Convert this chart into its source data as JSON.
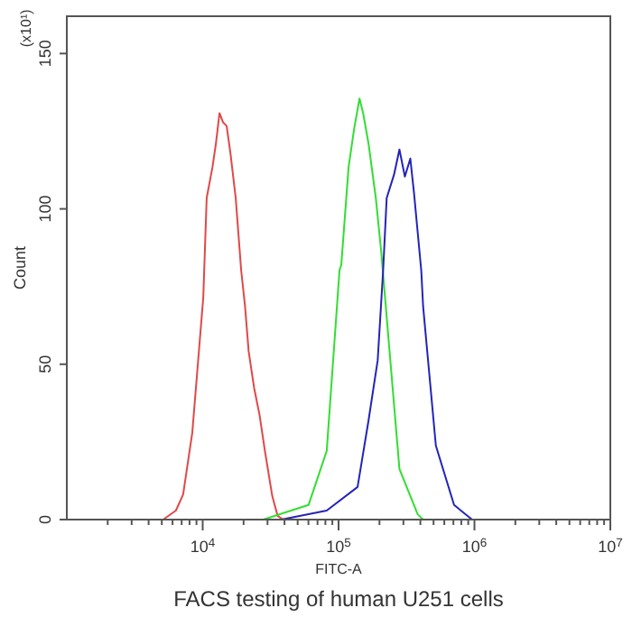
{
  "chart_data": {
    "type": "line",
    "title": "FACS testing of human U251 cells",
    "xlabel": "FITC-A",
    "ylabel": "Count",
    "annotations": [
      "(x10¹)"
    ],
    "log": "x",
    "grid": false,
    "line_style": "solid",
    "xlim": [
      1000,
      10000000
    ],
    "ylim": [
      0,
      162
    ],
    "xticks": [
      {
        "value": 2000,
        "label": null
      },
      {
        "value": 3000,
        "label": null
      },
      {
        "value": 4000,
        "label": null
      },
      {
        "value": 5000,
        "label": null
      },
      {
        "value": 6000,
        "label": null
      },
      {
        "value": 7000,
        "label": null
      },
      {
        "value": 8000,
        "label": null
      },
      {
        "value": 9000,
        "label": null
      },
      {
        "value": 10000,
        "label": "10$^{4}$"
      },
      {
        "value": 20000,
        "label": null
      },
      {
        "value": 30000,
        "label": null
      },
      {
        "value": 40000,
        "label": null
      },
      {
        "value": 50000,
        "label": null
      },
      {
        "value": 60000,
        "label": null
      },
      {
        "value": 70000,
        "label": null
      },
      {
        "value": 80000,
        "label": null
      },
      {
        "value": 90000,
        "label": null
      },
      {
        "value": 100000,
        "label": "10$^{5}$"
      },
      {
        "value": 200000,
        "label": null
      },
      {
        "value": 300000,
        "label": null
      },
      {
        "value": 400000,
        "label": null
      },
      {
        "value": 500000,
        "label": null
      },
      {
        "value": 600000,
        "label": null
      },
      {
        "value": 700000,
        "label": null
      },
      {
        "value": 800000,
        "label": null
      },
      {
        "value": 900000,
        "label": null
      },
      {
        "value": 1000000,
        "label": "10$^{6}$"
      },
      {
        "value": 2000000,
        "label": null
      },
      {
        "value": 3000000,
        "label": null
      },
      {
        "value": 4000000,
        "label": null
      },
      {
        "value": 5000000,
        "label": null
      },
      {
        "value": 6000000,
        "label": null
      },
      {
        "value": 7000000,
        "label": null
      },
      {
        "value": 8000000,
        "label": null
      },
      {
        "value": 9000000,
        "label": null
      },
      {
        "value": 10000000,
        "label": "10$^{7}$"
      }
    ],
    "yticks": [
      0,
      50,
      100,
      150
    ],
    "series": [
      {
        "color": "#e04848",
        "x": [
          5120,
          6350,
          7180,
          8380,
          10100,
          10700,
          11800,
          12500,
          13300,
          14100,
          15000,
          16000,
          17500,
          19200,
          20500,
          21800,
          23900,
          26200,
          28700,
          32500,
          35600,
          39100
        ],
        "values": [
          0,
          2.9,
          8.1,
          27.9,
          71.5,
          103.5,
          113.4,
          120.9,
          130.8,
          127.9,
          126.7,
          118,
          103.5,
          80.2,
          68.6,
          54.1,
          42.4,
          33.7,
          22.1,
          7.6,
          1.2,
          0
        ]
      },
      {
        "color": "#33dd33",
        "x": [
          27900,
          60100,
          81800,
          101600,
          104700,
          118500,
          130000,
          142600,
          151700,
          166300,
          188000,
          206200,
          240400,
          280500,
          382000,
          419000
        ],
        "values": [
          0,
          4.7,
          22.1,
          80.2,
          82,
          113.4,
          125.6,
          135.5,
          130.8,
          120.9,
          103.5,
          86,
          51.2,
          16.3,
          1.7,
          0
        ]
      },
      {
        "color": "#2424b8",
        "x": [
          37900,
          81800,
          138000,
          166300,
          194000,
          212800,
          226000,
          255900,
          280500,
          307600,
          337300,
          358900,
          406000,
          419000,
          520000,
          707900,
          961600
        ],
        "values": [
          0,
          2.9,
          10.5,
          32,
          51.2,
          80.2,
          103.5,
          111,
          119.1,
          110.4,
          116.2,
          105.2,
          80.2,
          68.6,
          23.8,
          4.7,
          0
        ]
      }
    ]
  }
}
